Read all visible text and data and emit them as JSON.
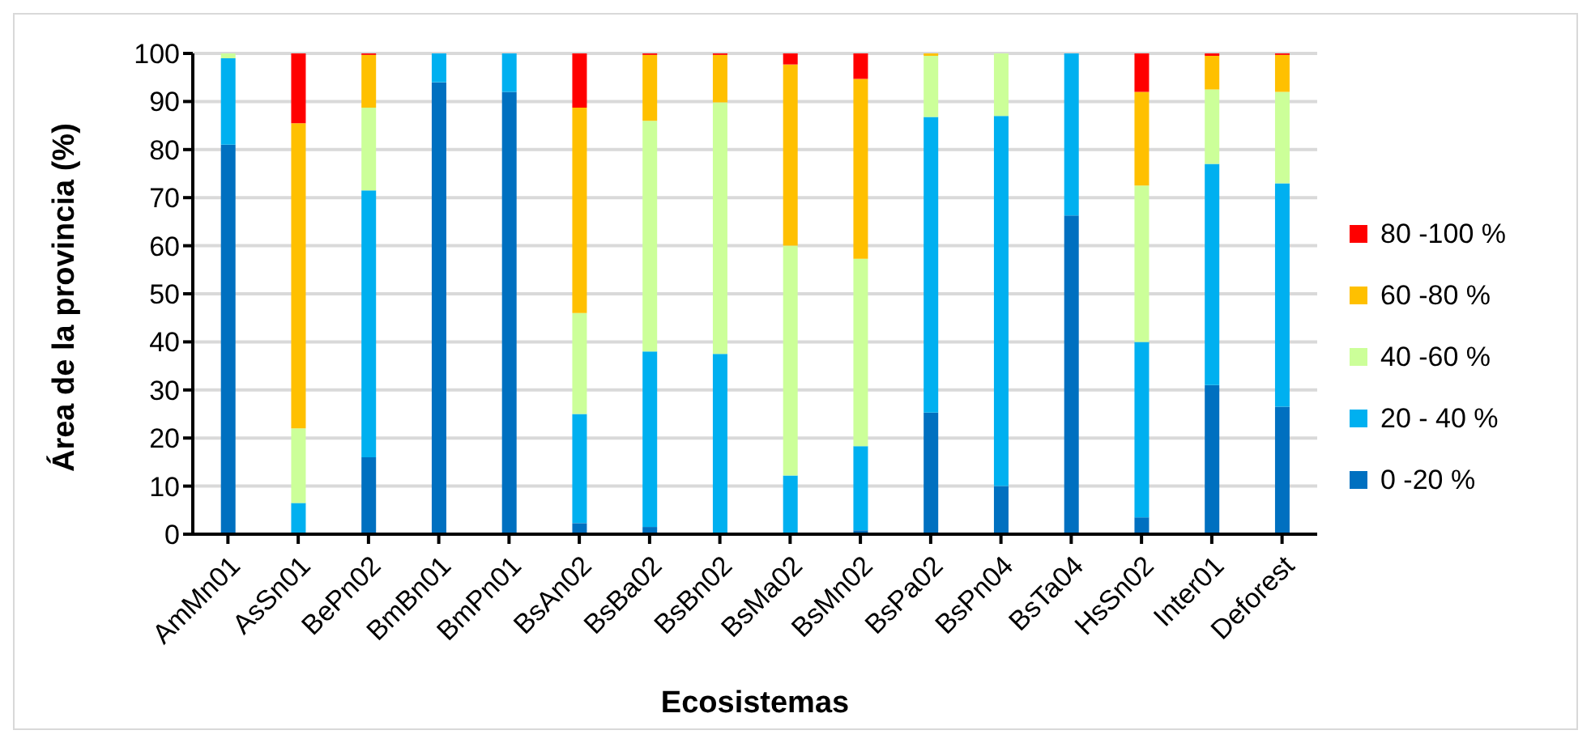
{
  "chart_data": {
    "type": "bar",
    "stacked": true,
    "xlabel": "Ecosistemas",
    "ylabel": "Área de la provincia (%)",
    "categories": [
      "AmMn01",
      "AsSn01",
      "BePn02",
      "BmBn01",
      "BmPn01",
      "BsAn02",
      "BsBa02",
      "BsBn02",
      "BsMa02",
      "BsMn02",
      "BsPa02",
      "BsPn04",
      "BsTa04",
      "HsSn02",
      "Inter01",
      "Deforest"
    ],
    "series": [
      {
        "name": "0 -20 %",
        "color": "#0070c0",
        "values": [
          81,
          0,
          16,
          94,
          92,
          2.3,
          1.5,
          0,
          0,
          0.8,
          25.3,
          10,
          66.3,
          3.5,
          31,
          26.5
        ]
      },
      {
        "name": "20 - 40 %",
        "color": "#00b0f0",
        "values": [
          18,
          6.5,
          55.5,
          6,
          8,
          22.7,
          36.5,
          37.5,
          12.2,
          17.5,
          61.5,
          77,
          33.7,
          36.5,
          46,
          46.5
        ]
      },
      {
        "name": "40 -60 %",
        "color": "#ccff99",
        "values": [
          1,
          15.5,
          17.2,
          0,
          0,
          21,
          48,
          52.3,
          47.8,
          39,
          12.7,
          13,
          0,
          32.5,
          15.5,
          19
        ]
      },
      {
        "name": "60 -80 %",
        "color": "#ffc000",
        "values": [
          0,
          63.5,
          11,
          0,
          0,
          42.7,
          13.7,
          9.9,
          37.7,
          37.4,
          0.5,
          0,
          0,
          19.5,
          7,
          7.7
        ]
      },
      {
        "name": "80 -100 %",
        "color": "#ff0000",
        "values": [
          0,
          14.5,
          0.3,
          0,
          0,
          11.3,
          0.3,
          0.3,
          2.3,
          5.3,
          0,
          0,
          0,
          8,
          0.5,
          0.3
        ]
      }
    ],
    "ylim": [
      0,
      100
    ],
    "yticks": [
      0,
      10,
      20,
      30,
      40,
      50,
      60,
      70,
      80,
      90,
      100
    ],
    "grid": "y",
    "legend": "right"
  }
}
